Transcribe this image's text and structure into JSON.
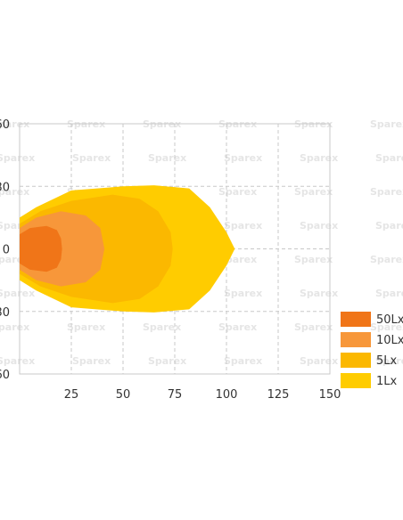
{
  "watermark": "Sparex",
  "chart_data": {
    "type": "area",
    "title": "",
    "xlabel": "",
    "ylabel": "",
    "xlim": [
      0,
      150
    ],
    "ylim": [
      -60,
      60
    ],
    "x_ticks": [
      "25",
      "50",
      "75",
      "100",
      "125",
      "150"
    ],
    "y_ticks": [
      "60",
      "30",
      "0",
      "30",
      "60"
    ],
    "grid": true,
    "legend_position": "right",
    "series": [
      {
        "name": "1Lx",
        "color": "#ffcc00",
        "points": [
          [
            0,
            15
          ],
          [
            8,
            20
          ],
          [
            25,
            28
          ],
          [
            50,
            30
          ],
          [
            65,
            30.5
          ],
          [
            82,
            29
          ],
          [
            92,
            20
          ],
          [
            100,
            8
          ],
          [
            104,
            0
          ],
          [
            100,
            -8
          ],
          [
            92,
            -20
          ],
          [
            82,
            -29
          ],
          [
            65,
            -30.5
          ],
          [
            50,
            -30
          ],
          [
            25,
            -28
          ],
          [
            8,
            -20
          ],
          [
            0,
            -15
          ]
        ]
      },
      {
        "name": "5Lx",
        "color": "#fbb800",
        "points": [
          [
            0,
            12
          ],
          [
            10,
            18
          ],
          [
            25,
            23
          ],
          [
            45,
            26
          ],
          [
            58,
            24
          ],
          [
            67,
            18
          ],
          [
            73,
            8
          ],
          [
            74,
            0
          ],
          [
            73,
            -8
          ],
          [
            67,
            -18
          ],
          [
            58,
            -24
          ],
          [
            45,
            -26
          ],
          [
            25,
            -23
          ],
          [
            10,
            -18
          ],
          [
            0,
            -12
          ]
        ]
      },
      {
        "name": "10Lx",
        "color": "#f7973a",
        "points": [
          [
            0,
            10
          ],
          [
            8,
            15
          ],
          [
            20,
            18
          ],
          [
            32,
            16
          ],
          [
            39,
            10
          ],
          [
            41,
            0
          ],
          [
            39,
            -10
          ],
          [
            32,
            -16
          ],
          [
            20,
            -18
          ],
          [
            8,
            -15
          ],
          [
            0,
            -10
          ]
        ]
      },
      {
        "name": "50Lx",
        "color": "#f07518",
        "points": [
          [
            0,
            7
          ],
          [
            5,
            10
          ],
          [
            13,
            11
          ],
          [
            18,
            9
          ],
          [
            20,
            5
          ],
          [
            20.5,
            0
          ],
          [
            20,
            -5
          ],
          [
            18,
            -9
          ],
          [
            13,
            -11
          ],
          [
            5,
            -10
          ],
          [
            0,
            -7
          ]
        ]
      }
    ],
    "legend": [
      {
        "label": "50Lx",
        "color": "#f07518"
      },
      {
        "label": "10Lx",
        "color": "#f7973a"
      },
      {
        "label": "5Lx",
        "color": "#fbb800"
      },
      {
        "label": "1Lx",
        "color": "#ffcc00"
      }
    ]
  }
}
